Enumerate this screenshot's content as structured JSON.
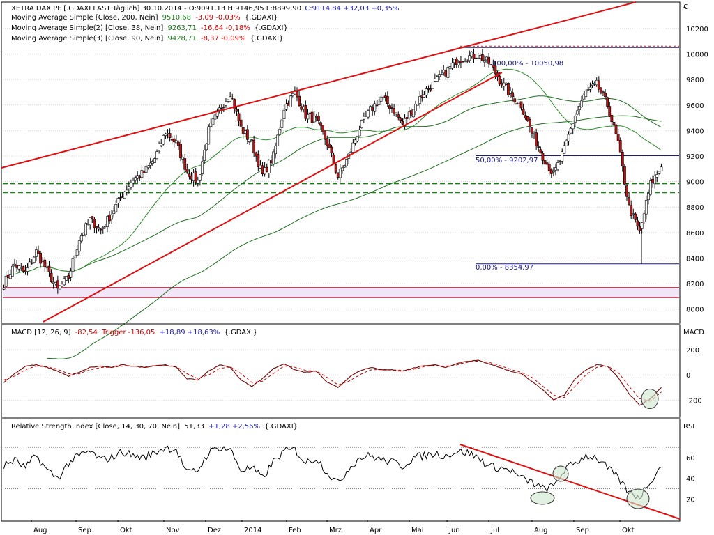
{
  "colors": {
    "candle_up": "#ffffff",
    "candle_down": "#b01818",
    "candle_outline": "#000000",
    "ma200": "#1f6e1f",
    "ma38": "#2a8c2a",
    "ma90": "#1f6e1f",
    "trendline": "#e01010",
    "support": "#1f7d1f",
    "fib": "#1a1a80",
    "zone_fill": "#f0e6f8",
    "zone_line": "#e01030",
    "macd": "#cc0000",
    "trigger": "#cc0000",
    "rsi": "#000000",
    "positive": "#1a1ab0",
    "negative": "#cc0000",
    "green_value": "#1a7d1a"
  },
  "header": {
    "line1_prefix": "XETRA DAX PF [.GDAXI LAST Täglich] 30.10.2014 - O:9091,13 H:9146,95 L:8899,90",
    "line1_close": "C:9114,84 +32,03 +0,35%",
    "ma1_label": "Moving Average Simple [Close, 200, Nein]",
    "ma1_value": "9510,68",
    "ma1_change": "-3,09 -0,03%",
    "ma1_suffix": "{.GDAXI}",
    "ma2_label": "Moving Average Simple(2) [Close, 38, Nein]",
    "ma2_value": "9263,71",
    "ma2_change": "-16,64 -0,18%",
    "ma2_suffix": "{.GDAXI}",
    "ma3_label": "Moving Average Simple(3) [Close, 90, Nein]",
    "ma3_value": "9428,71",
    "ma3_change": "-8,37 -0,09%",
    "ma3_suffix": "{.GDAXI}",
    "currency": "€"
  },
  "macd_header": {
    "label": "MACD [12, 26, 9]",
    "value": "-82,54",
    "trigger": "Trigger -136,05",
    "change": "+18,89 +18,63%",
    "suffix": "{.GDAXI}",
    "axis_title": "MACD"
  },
  "rsi_header": {
    "label": "Relative Strength Index [Close, 14, 30, 70, Nein]",
    "value": "51,33",
    "change": "+1,28 +2,56%",
    "suffix": "{.GDAXI}",
    "axis_title": "RSI"
  },
  "fib_labels": {
    "f100": "100,00% - 10050,98",
    "f50": "50,00% - 9202,97",
    "f0": "0,00% - 8354,97"
  },
  "chart_data": [
    {
      "type": "candlestick",
      "title": "XETRA DAX PF",
      "y_ticks": [
        8000,
        8200,
        8400,
        8600,
        8800,
        9000,
        9200,
        9400,
        9600,
        9800,
        10000,
        10200
      ],
      "ylim": [
        7900,
        10380
      ],
      "x_labels": [
        "Aug",
        "Sep",
        "Okt",
        "Nov",
        "Dez",
        "2014",
        "Feb",
        "Mrz",
        "Apr",
        "Mai",
        "Jun",
        "Jul",
        "Aug",
        "Sep",
        "Okt"
      ],
      "closes_weekly": [
        8200,
        8350,
        8280,
        8450,
        8300,
        8150,
        8250,
        8550,
        8700,
        8620,
        8750,
        8900,
        9020,
        9070,
        9180,
        9390,
        9300,
        9080,
        9000,
        9400,
        9560,
        9700,
        9420,
        9300,
        9050,
        9200,
        9580,
        9700,
        9520,
        9480,
        9300,
        9040,
        9200,
        9420,
        9560,
        9660,
        9580,
        9450,
        9580,
        9700,
        9780,
        9860,
        9950,
        9980,
        9990,
        9930,
        9800,
        9680,
        9600,
        9380,
        9200,
        9050,
        9250,
        9520,
        9700,
        9760,
        9600,
        9300,
        8800,
        8600,
        8980,
        9114
      ],
      "series": [
        {
          "name": "Moving Average Simple [Close, 200, Nein]",
          "last": 9510.68
        },
        {
          "name": "Moving Average Simple(2) [Close, 38, Nein]",
          "last": 9263.71
        },
        {
          "name": "Moving Average Simple(3) [Close, 90, Nein]",
          "last": 9428.71
        }
      ],
      "fibonacci": [
        {
          "label": "100,00%",
          "value": 10050.98
        },
        {
          "label": "50,00%",
          "value": 9202.97
        },
        {
          "label": "0,00%",
          "value": 8354.97
        }
      ],
      "support_lines": [
        8985,
        8915
      ],
      "zone": [
        8090,
        8170
      ],
      "ohlc_last": {
        "open": 9091.13,
        "high": 9146.95,
        "low": 8899.9,
        "close": 9114.84
      }
    },
    {
      "type": "line",
      "title": "MACD [12, 26, 9]",
      "y_ticks": [
        200,
        0,
        -200
      ],
      "ylim": [
        -320,
        300
      ],
      "macd_weekly": [
        -60,
        10,
        70,
        80,
        60,
        30,
        -10,
        20,
        60,
        70,
        60,
        80,
        70,
        60,
        75,
        80,
        60,
        -30,
        -40,
        30,
        80,
        60,
        -40,
        -90,
        -30,
        50,
        90,
        40,
        20,
        30,
        -60,
        -100,
        -20,
        30,
        60,
        40,
        40,
        30,
        55,
        75,
        80,
        60,
        90,
        110,
        115,
        90,
        60,
        30,
        10,
        -50,
        -120,
        -200,
        -160,
        -30,
        40,
        80,
        70,
        -20,
        -150,
        -240,
        -190,
        -100
      ],
      "trigger_weekly": [
        -40,
        -10,
        40,
        70,
        65,
        45,
        10,
        10,
        40,
        60,
        60,
        70,
        70,
        62,
        70,
        75,
        65,
        10,
        -30,
        0,
        50,
        65,
        10,
        -60,
        -50,
        10,
        70,
        60,
        35,
        30,
        -20,
        -80,
        -50,
        0,
        40,
        45,
        40,
        35,
        45,
        65,
        75,
        68,
        80,
        100,
        110,
        100,
        75,
        45,
        20,
        -20,
        -90,
        -160,
        -180,
        -90,
        0,
        60,
        72,
        20,
        -90,
        -190,
        -210,
        -136
      ],
      "last": {
        "macd": -82.54,
        "trigger": -136.05
      }
    },
    {
      "type": "line",
      "title": "Relative Strength Index [Close, 14, 30, 70, Nein]",
      "y_ticks": [
        60,
        40,
        20
      ],
      "ylim": [
        0,
        85
      ],
      "levels": [
        30,
        70
      ],
      "rsi_weekly": [
        52,
        58,
        50,
        62,
        48,
        40,
        55,
        62,
        66,
        58,
        60,
        66,
        62,
        60,
        65,
        70,
        68,
        45,
        48,
        65,
        70,
        68,
        48,
        50,
        40,
        56,
        66,
        68,
        55,
        60,
        46,
        35,
        50,
        60,
        62,
        58,
        56,
        52,
        60,
        62,
        64,
        62,
        66,
        65,
        60,
        52,
        50,
        48,
        40,
        36,
        30,
        32,
        48,
        55,
        62,
        60,
        50,
        40,
        26,
        22,
        38,
        51
      ],
      "last": 51.33
    }
  ]
}
